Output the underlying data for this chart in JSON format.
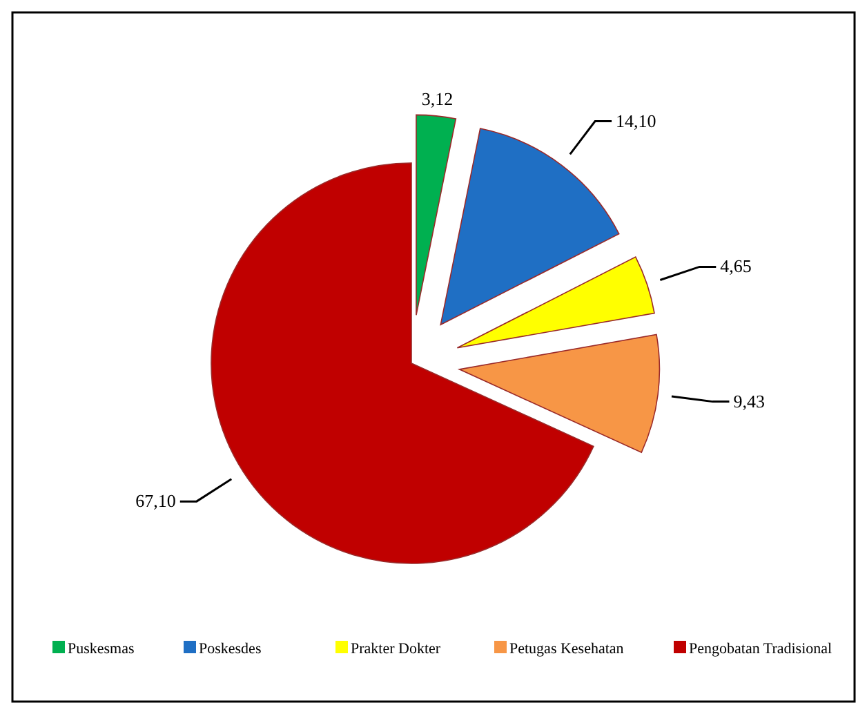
{
  "chart_data": {
    "type": "pie",
    "categories": [
      "Puskesmas",
      "Poskesdes",
      "Prakter Dokter",
      "Petugas Kesehatan",
      "Pengobatan Tradisional"
    ],
    "values": [
      3.12,
      14.1,
      4.65,
      9.43,
      67.1
    ],
    "value_labels": [
      "3,12",
      "14,10",
      "4,65",
      "9,43",
      "67,10"
    ],
    "colors": [
      "#00b050",
      "#1f6fc4",
      "#ffff00",
      "#f79646",
      "#c00000"
    ],
    "legend": "bottom"
  }
}
